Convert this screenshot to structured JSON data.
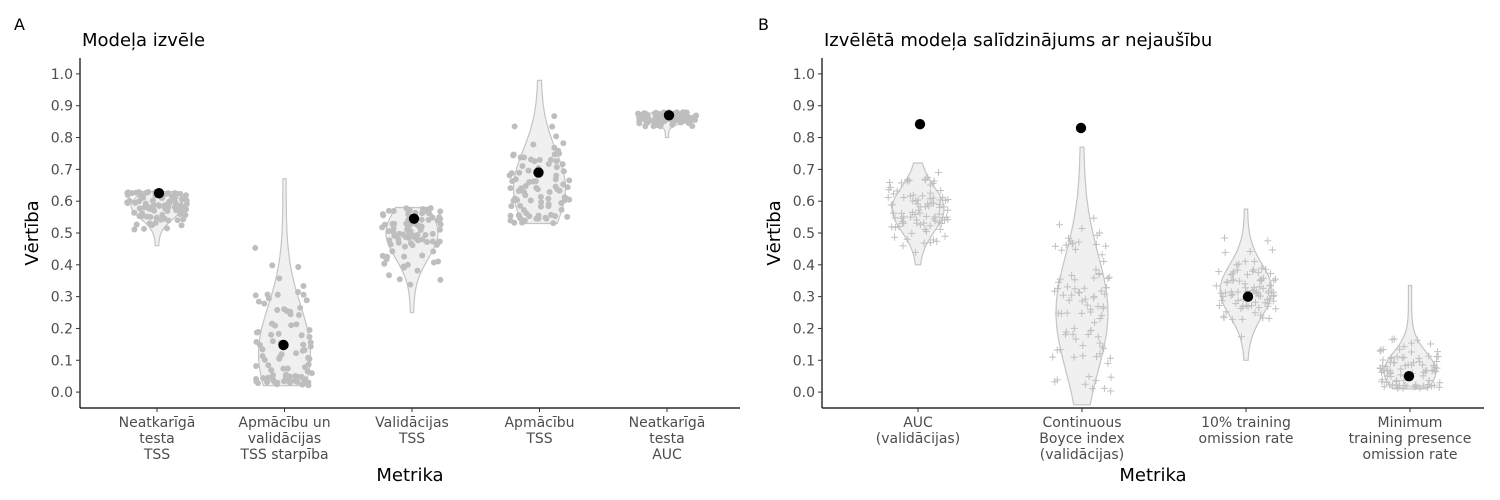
{
  "colors": {
    "violin_fill": "#f0f0f0",
    "violin_stroke": "#c4c4c4",
    "jitter": "#bebebe",
    "selected": "#000000"
  },
  "chart_data": [
    {
      "panel": "A",
      "type": "violin",
      "title": "Modeļa izvēle",
      "xlabel": "Metrika",
      "ylabel": "Vērtība",
      "ylim": [
        -0.05,
        1.05
      ],
      "yticks": [
        "0.0",
        "0.1",
        "0.2",
        "0.3",
        "0.4",
        "0.5",
        "0.6",
        "0.7",
        "0.8",
        "0.9",
        "1.0"
      ],
      "jitter_marker": "dot",
      "grid": false,
      "categories": [
        {
          "label": [
            "Neatkarīgā",
            "testa",
            "TSS"
          ],
          "range": [
            0.46,
            0.63
          ],
          "center": 0.585,
          "spread": 0.04,
          "selected": 0.625
        },
        {
          "label": [
            "Apmācību un",
            "validācijas",
            "TSS starpība"
          ],
          "range": [
            0.02,
            0.67
          ],
          "center": 0.12,
          "spread": 0.15,
          "selected": 0.148
        },
        {
          "label": [
            "Validācijas",
            "TSS"
          ],
          "range": [
            0.25,
            0.58
          ],
          "center": 0.5,
          "spread": 0.08,
          "selected": 0.545
        },
        {
          "label": [
            "Apmācību",
            "TSS"
          ],
          "range": [
            0.53,
            0.98
          ],
          "center": 0.64,
          "spread": 0.12,
          "selected": 0.69
        },
        {
          "label": [
            "Neatkarīgā",
            "testa",
            "AUC"
          ],
          "range": [
            0.8,
            0.88
          ],
          "center": 0.862,
          "spread": 0.015,
          "selected": 0.87
        }
      ]
    },
    {
      "panel": "B",
      "type": "violin",
      "title": "Izvēlētā modeļa salīdzinājums ar nejaušību",
      "xlabel": "Metrika",
      "ylabel": "Vērtība",
      "ylim": [
        -0.05,
        1.05
      ],
      "yticks": [
        "0.0",
        "0.1",
        "0.2",
        "0.3",
        "0.4",
        "0.5",
        "0.6",
        "0.7",
        "0.8",
        "0.9",
        "1.0"
      ],
      "jitter_marker": "plus",
      "grid": false,
      "categories": [
        {
          "label": [
            "AUC",
            "(validācijas)"
          ],
          "range": [
            0.4,
            0.72
          ],
          "center": 0.575,
          "spread": 0.07,
          "selected": 0.842
        },
        {
          "label": [
            "Continuous",
            "Boyce index",
            "(validācijas)"
          ],
          "range": [
            -0.04,
            0.77
          ],
          "center": 0.25,
          "spread": 0.18,
          "selected": 0.83
        },
        {
          "label": [
            "10% training",
            "omission rate"
          ],
          "range": [
            0.1,
            0.575
          ],
          "center": 0.32,
          "spread": 0.08,
          "selected": 0.3
        },
        {
          "label": [
            "Minimum",
            "training presence",
            "omission rate"
          ],
          "range": [
            0.01,
            0.335
          ],
          "center": 0.065,
          "spread": 0.06,
          "selected": 0.05
        }
      ]
    }
  ]
}
